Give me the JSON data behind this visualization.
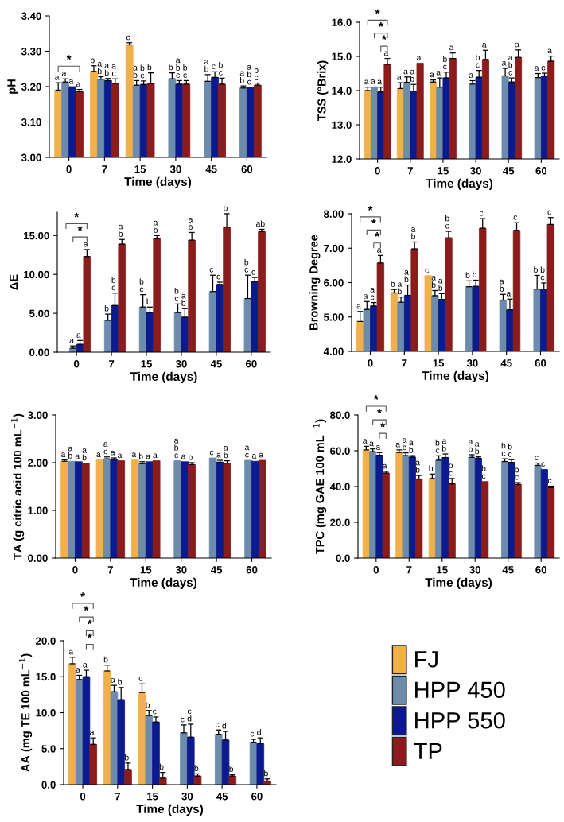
{
  "chart_data": [
    {
      "type": "bar",
      "ylabel": "pH",
      "xlabel": "Time (days)",
      "categories": [
        "0",
        "7",
        "15",
        "30",
        "45",
        "60"
      ],
      "ylim": [
        3.0,
        3.4
      ],
      "yticks": [
        {
          "value": 3.0,
          "label": "3.00"
        },
        {
          "value": 3.1,
          "label": "3.10"
        },
        {
          "value": 3.2,
          "label": "3.20"
        },
        {
          "value": 3.3,
          "label": "3.30"
        },
        {
          "value": 3.4,
          "label": "3.40"
        }
      ],
      "grid": false,
      "legend": false,
      "annotations": [
        "*"
      ],
      "series": [
        {
          "color": "#f0b04a",
          "values": [
            3.19,
            3.243,
            3.318,
            null,
            null,
            null
          ],
          "errors": [
            0.021,
            0.016,
            0.006,
            null,
            null,
            null
          ],
          "value_labels": [
            "a",
            "b",
            "c",
            null,
            null,
            null
          ]
        },
        {
          "color": "#6d8cab",
          "values": [
            3.213,
            3.221,
            3.204,
            3.222,
            3.215,
            3.196
          ],
          "errors": [
            0.009,
            0.007,
            0.013,
            0.017,
            0.019,
            0.006
          ],
          "value_labels": [
            "a",
            "a\nb",
            "a\nb",
            "b",
            "a\nb",
            "a\nb"
          ]
        },
        {
          "color": "#0b1a8c",
          "values": [
            3.2,
            3.217,
            3.206,
            3.207,
            3.226,
            3.198
          ],
          "errors": [
            null,
            0.006,
            0.01,
            0.01,
            0.016,
            null
          ],
          "value_labels": [
            "a",
            "a\nb",
            "b\nc",
            "a\nb\nc",
            "c",
            "a\nb\nc"
          ]
        },
        {
          "color": "#8a1c1c",
          "values": [
            3.186,
            3.209,
            3.209,
            3.207,
            3.207,
            3.204
          ],
          "errors": [
            0.006,
            0.013,
            0.03,
            0.01,
            0.017,
            0.006
          ],
          "value_labels": [
            "a",
            "a\nc",
            "b",
            "b\nc",
            "b\nc",
            "b\nc"
          ]
        }
      ]
    },
    {
      "type": "bar",
      "ylabel": "TSS (°Brix)",
      "xlabel": "Time (days)",
      "categories": [
        "0",
        "7",
        "15",
        "30",
        "45",
        "60"
      ],
      "ylim": [
        12.0,
        16.0
      ],
      "yticks": [
        {
          "value": 12,
          "label": "12.0"
        },
        {
          "value": 13,
          "label": "13.0"
        },
        {
          "value": 14,
          "label": "14.0"
        },
        {
          "value": 15,
          "label": "15.0"
        },
        {
          "value": 16,
          "label": "16.0"
        }
      ],
      "grid": false,
      "legend": false,
      "annotations": [
        "*",
        "*",
        "*"
      ],
      "series": [
        {
          "color": "#f0b04a",
          "values": [
            14.0,
            14.06,
            14.25,
            null,
            null,
            null
          ],
          "errors": [
            0.1,
            0.17,
            0.06,
            null,
            null,
            null
          ],
          "value_labels": [
            "a",
            "a",
            "a",
            null,
            null,
            null
          ]
        },
        {
          "color": "#6d8cab",
          "values": [
            14.11,
            14.24,
            14.1,
            14.19,
            14.43,
            14.38
          ],
          "errors": [
            null,
            0.16,
            0.27,
            0.1,
            0.22,
            0.12
          ],
          "value_labels": [
            "a",
            "a",
            "a",
            "a",
            "a",
            "a"
          ]
        },
        {
          "color": "#0b1a8c",
          "values": [
            13.96,
            13.98,
            14.37,
            14.39,
            14.25,
            14.43
          ],
          "errors": [
            0.14,
            0.2,
            0.17,
            0.2,
            0.12,
            0.08
          ],
          "value_labels": [
            "a",
            "a\nb",
            "b\nc",
            "b\nc",
            "a\nb\nc",
            "c"
          ]
        },
        {
          "color": "#8a1c1c",
          "values": [
            14.77,
            14.8,
            14.94,
            14.91,
            14.97,
            14.86
          ],
          "errors": [
            0.17,
            null,
            0.16,
            0.27,
            0.22,
            0.15
          ],
          "value_labels": [
            "a",
            "a",
            "a",
            "a",
            "a",
            "a"
          ]
        }
      ]
    },
    {
      "type": "bar",
      "ylabel": "ΔE",
      "xlabel": "Time (days)",
      "categories": [
        "0",
        "7",
        "15",
        "30",
        "45",
        "60"
      ],
      "ylim": [
        0,
        18
      ],
      "yticks": [
        {
          "value": 0,
          "label": "0.00"
        },
        {
          "value": 5,
          "label": "5.00"
        },
        {
          "value": 10,
          "label": "10.00"
        },
        {
          "value": 15,
          "label": "15.00"
        }
      ],
      "grid": false,
      "legend": false,
      "annotations": [
        "*",
        "*"
      ],
      "series": [
        {
          "color": "#f0b04a",
          "values": [
            null,
            null,
            null,
            null,
            null,
            null
          ],
          "errors": [
            null,
            null,
            null,
            null,
            null,
            null
          ],
          "value_labels": [
            null,
            null,
            null,
            null,
            null,
            null
          ]
        },
        {
          "color": "#6d8cab",
          "values": [
            0.5,
            4.1,
            5.8,
            5.1,
            7.8,
            6.9
          ],
          "errors": [
            0.3,
            0.8,
            1.6,
            1.1,
            2.1,
            3.0
          ],
          "value_labels": [
            "a",
            "b",
            "b\nc",
            "b\nc",
            "c",
            "b\nc"
          ]
        },
        {
          "color": "#0b1a8c",
          "values": [
            1.0,
            6.0,
            5.1,
            4.5,
            8.7,
            9.1
          ],
          "errors": [
            0.5,
            1.6,
            0.7,
            1.1,
            0.3,
            0.5
          ],
          "value_labels": [
            "a",
            "b\nc",
            "b",
            "a\nb",
            "c",
            "c"
          ]
        },
        {
          "color": "#8a1c1c",
          "values": [
            12.3,
            13.9,
            14.6,
            14.4,
            16.1,
            15.5
          ],
          "errors": [
            0.9,
            0.6,
            0.4,
            1.0,
            1.7,
            0.3
          ],
          "value_labels": [
            "a",
            "a\nb",
            "a\nb",
            "a\nb",
            "b",
            "ab"
          ]
        }
      ]
    },
    {
      "type": "bar",
      "ylabel": "Browning Degree",
      "xlabel": "Time (days)",
      "categories": [
        "0",
        "7",
        "15",
        "30",
        "45",
        "60"
      ],
      "ylim": [
        4.0,
        8.0
      ],
      "yticks": [
        {
          "value": 4,
          "label": "4.00"
        },
        {
          "value": 5,
          "label": "5.00"
        },
        {
          "value": 6,
          "label": "6.00"
        },
        {
          "value": 7,
          "label": "7.00"
        },
        {
          "value": 8,
          "label": "8.00"
        }
      ],
      "grid": false,
      "legend": false,
      "annotations": [
        "*",
        "*",
        "*"
      ],
      "series": [
        {
          "color": "#f0b04a",
          "values": [
            4.87,
            5.7,
            6.2,
            null,
            null,
            null
          ],
          "errors": [
            0.29,
            0.1,
            null,
            null,
            null,
            null
          ],
          "value_labels": [
            "a",
            "b",
            "c",
            null,
            null,
            null
          ]
        },
        {
          "color": "#6d8cab",
          "values": [
            5.22,
            5.43,
            5.62,
            5.88,
            5.49,
            5.81
          ],
          "errors": [
            0.23,
            0.15,
            0.15,
            0.17,
            0.17,
            0.4
          ],
          "value_labels": [
            "a",
            "a\nb",
            "a\nb",
            "b",
            "a\nb",
            "b"
          ]
        },
        {
          "color": "#0b1a8c",
          "values": [
            5.32,
            5.63,
            5.51,
            5.89,
            5.21,
            5.81
          ],
          "errors": [
            0.1,
            0.3,
            0.17,
            0.18,
            0.31,
            0.18
          ],
          "value_labels": [
            "a\nc",
            "a\nb",
            "a\nb",
            "b",
            "a",
            "b\nc"
          ]
        },
        {
          "color": "#8a1c1c",
          "values": [
            6.57,
            6.98,
            7.3,
            7.58,
            7.52,
            7.69
          ],
          "errors": [
            0.22,
            0.2,
            0.19,
            0.28,
            0.22,
            0.2
          ],
          "value_labels": [
            "a",
            "a\nb",
            "b\nc",
            "c",
            "c",
            "c"
          ]
        }
      ]
    },
    {
      "type": "bar",
      "ylabel": "TA (g citric acid 100 mL$^{−1}$)",
      "xlabel": "Time (days)",
      "categories": [
        "0",
        "7",
        "15",
        "30",
        "45",
        "60"
      ],
      "ylim": [
        0,
        3.0
      ],
      "yticks": [
        {
          "value": 0,
          "label": "0.00"
        },
        {
          "value": 1,
          "label": "1.00"
        },
        {
          "value": 2,
          "label": "2.00"
        },
        {
          "value": 3,
          "label": "3.00"
        }
      ],
      "grid": false,
      "legend": false,
      "series": [
        {
          "color": "#f0b04a",
          "values": [
            2.03,
            2.06,
            2.06,
            null,
            null,
            null
          ],
          "errors": [
            0.03,
            null,
            null,
            null,
            null,
            null
          ],
          "value_labels": [
            "a",
            "a",
            "a",
            null,
            null,
            null
          ]
        },
        {
          "color": "#6d8cab",
          "values": [
            2.03,
            2.08,
            1.98,
            2.04,
            2.1,
            2.05
          ],
          "errors": [
            null,
            0.04,
            0.04,
            null,
            null,
            null
          ],
          "value_labels": [
            "a\nb",
            "a\nc",
            "b",
            "a\nb\nc",
            "c",
            "a\nc"
          ]
        },
        {
          "color": "#0b1a8c",
          "values": [
            2.02,
            2.07,
            2.02,
            2.02,
            2.01,
            2.03
          ],
          "errors": [
            null,
            0.03,
            null,
            null,
            0.04,
            null
          ],
          "value_labels": [
            "a",
            "a",
            "a",
            "a",
            "a",
            "a"
          ]
        },
        {
          "color": "#8a1c1c",
          "values": [
            1.99,
            2.04,
            2.04,
            1.96,
            1.99,
            2.05
          ],
          "errors": [
            null,
            null,
            null,
            0.04,
            0.05,
            null
          ],
          "value_labels": [
            "a\nb",
            "a",
            "a",
            "b",
            "a\nb",
            "a"
          ]
        }
      ]
    },
    {
      "type": "bar",
      "ylabel": "TPC (mg GAE 100 mL$^{−1}$)",
      "xlabel": "Time (days)",
      "categories": [
        "0",
        "7",
        "15",
        "30",
        "45",
        "60"
      ],
      "ylim": [
        0,
        80
      ],
      "yticks": [
        {
          "value": 0,
          "label": "0.0"
        },
        {
          "value": 20,
          "label": "20.0"
        },
        {
          "value": 40,
          "label": "40.0"
        },
        {
          "value": 60,
          "label": "60.0"
        },
        {
          "value": 80,
          "label": "80.0"
        }
      ],
      "grid": false,
      "legend": false,
      "annotations": [
        "*",
        "*",
        "*"
      ],
      "series": [
        {
          "color": "#f0b04a",
          "values": [
            60.5,
            59,
            44.5,
            null,
            null,
            null
          ],
          "errors": [
            2,
            1.5,
            2.5,
            null,
            null,
            null
          ],
          "value_labels": [
            "a",
            "a",
            "b",
            null,
            null,
            null
          ]
        },
        {
          "color": "#6d8cab",
          "values": [
            59.5,
            57.3,
            54.7,
            56.3,
            54,
            51.8
          ],
          "errors": [
            1.5,
            1.5,
            2.5,
            1.5,
            1.5,
            1.3
          ],
          "value_labels": [
            "a",
            "a\nb",
            "b\nc",
            "a\nb",
            "b\nc",
            "c"
          ]
        },
        {
          "color": "#0b1a8c",
          "values": [
            57.5,
            56.5,
            56.2,
            55.8,
            53.5,
            49.6
          ],
          "errors": [
            1.5,
            0.8,
            2,
            0.8,
            1.5,
            null
          ],
          "value_labels": [
            "a",
            "a\nb",
            "a\nb",
            "a\nb",
            "b\nc",
            "c"
          ]
        },
        {
          "color": "#8a1c1c",
          "values": [
            47.5,
            44.2,
            41.5,
            42.8,
            41.2,
            39.4
          ],
          "errors": [
            1,
            2,
            3,
            null,
            1,
            0.8
          ],
          "value_labels": [
            "a",
            "a\nb",
            "b\nc",
            "b\nc",
            "b\nc",
            "c"
          ]
        }
      ]
    },
    {
      "type": "bar",
      "ylabel": "AA (mg TE 100 mL$^{−1}$)",
      "xlabel": "Time (days)",
      "categories": [
        "0",
        "7",
        "15",
        "30",
        "45",
        "60"
      ],
      "ylim": [
        0,
        20
      ],
      "yticks": [
        {
          "value": 0,
          "label": "0.0"
        },
        {
          "value": 5,
          "label": "5.0"
        },
        {
          "value": 10,
          "label": "10.0"
        },
        {
          "value": 15,
          "label": "15.0"
        },
        {
          "value": 20,
          "label": "20.0"
        }
      ],
      "grid": false,
      "legend": "right",
      "annotations": [
        "*",
        "*",
        "*",
        "*"
      ],
      "series": [
        {
          "name": "FJ",
          "color": "#f0b04a",
          "values": [
            16.8,
            15.8,
            12.8,
            null,
            null,
            null
          ],
          "errors": [
            0.9,
            0.8,
            1.2,
            null,
            null,
            null
          ],
          "value_labels": [
            "a",
            "b",
            "c",
            null,
            null,
            null
          ]
        },
        {
          "name": "HPP 450",
          "color": "#6d8cab",
          "values": [
            14.6,
            12.9,
            9.6,
            7.2,
            7.0,
            5.9
          ],
          "errors": [
            0.6,
            0.9,
            0.7,
            1.1,
            0.6,
            0.4
          ],
          "value_labels": [
            "a",
            "a",
            "b",
            "c",
            "c",
            "c"
          ]
        },
        {
          "name": "HPP 550",
          "color": "#0b1a8c",
          "values": [
            15.0,
            11.8,
            8.7,
            6.6,
            6.2,
            5.7
          ],
          "errors": [
            0.9,
            1.7,
            0.7,
            1.8,
            1.2,
            0.8
          ],
          "value_labels": [
            "a",
            "b",
            "c",
            "c\nd",
            "d",
            "d"
          ]
        },
        {
          "name": "TP",
          "color": "#8a1c1c",
          "values": [
            5.6,
            2.1,
            0.9,
            1.2,
            1.2,
            0.5
          ],
          "errors": [
            0.9,
            0.9,
            0.8,
            0.3,
            0.2,
            0.3
          ],
          "value_labels": [
            "a",
            "b",
            "b",
            "b",
            "b",
            "b"
          ]
        }
      ]
    }
  ]
}
